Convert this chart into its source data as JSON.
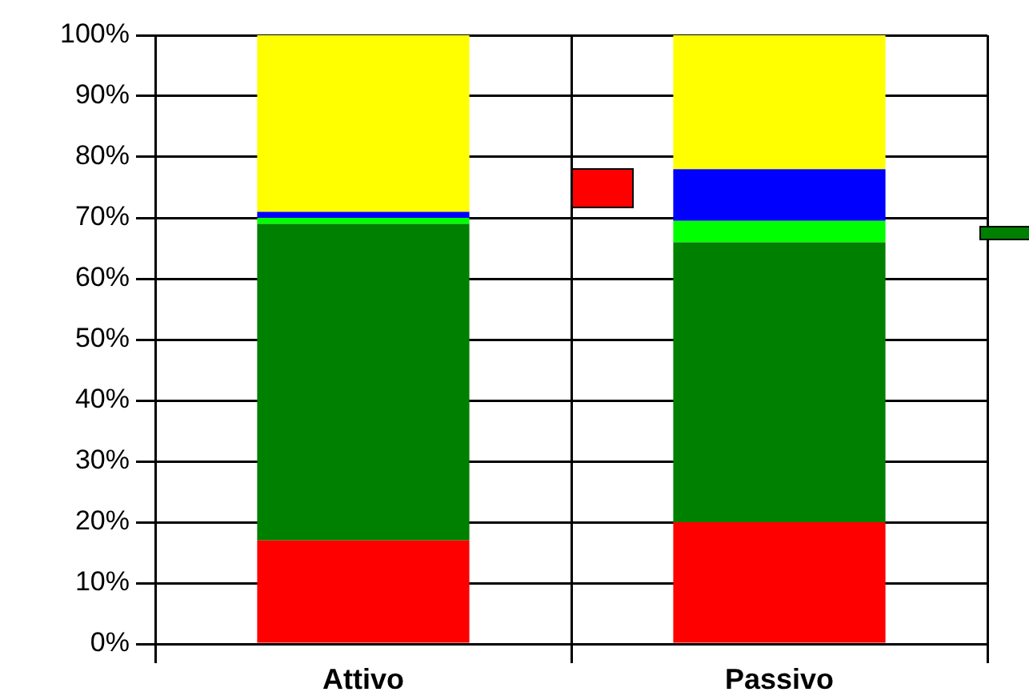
{
  "chart_data": {
    "type": "bar",
    "stacked": true,
    "categories": [
      "Attivo",
      "Passivo"
    ],
    "series": [
      {
        "color": "#ff0000",
        "values": [
          17,
          20
        ]
      },
      {
        "color": "#008000",
        "values": [
          52,
          46
        ]
      },
      {
        "color": "#00ff00",
        "values": [
          1,
          3.5
        ]
      },
      {
        "color": "#0000ff",
        "values": [
          1,
          8.5
        ]
      },
      {
        "color": "#ffff00",
        "values": [
          29,
          22
        ]
      }
    ],
    "ylim": [
      0,
      100
    ],
    "yticks": [
      {
        "value": 0,
        "label": "0%"
      },
      {
        "value": 10,
        "label": "10%"
      },
      {
        "value": 20,
        "label": "20%"
      },
      {
        "value": 30,
        "label": "30%"
      },
      {
        "value": 40,
        "label": "40%"
      },
      {
        "value": 50,
        "label": "50%"
      },
      {
        "value": 60,
        "label": "60%"
      },
      {
        "value": 70,
        "label": "70%"
      },
      {
        "value": 80,
        "label": "80%"
      },
      {
        "value": 90,
        "label": "90%"
      },
      {
        "value": 100,
        "label": "100%"
      }
    ],
    "grid": true,
    "legend": false
  }
}
